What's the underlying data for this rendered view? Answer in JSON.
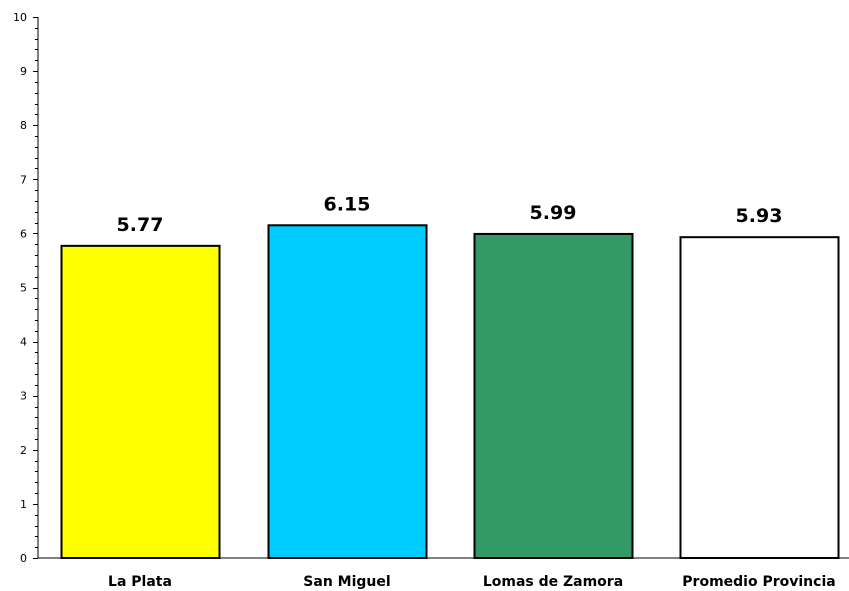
{
  "chart_data": {
    "type": "bar",
    "title": "",
    "xlabel": "",
    "ylabel": "",
    "categories": [
      "La Plata",
      "San Miguel",
      "Lomas de Zamora",
      "Promedio Provincia"
    ],
    "values": [
      5.77,
      6.15,
      5.99,
      5.93
    ],
    "value_labels": [
      "5.77",
      "6.15",
      "5.99",
      "5.93"
    ],
    "colors": [
      "#FFFF00",
      "#00CCFF",
      "#339966",
      "#FFFFFF"
    ],
    "ylim": [
      0,
      10
    ],
    "yticks": [
      "0",
      "1",
      "2",
      "3",
      "4",
      "5",
      "6",
      "7",
      "8",
      "9",
      "10"
    ],
    "minor_ticks_per_major": 5,
    "grid": false,
    "legend": "none"
  }
}
